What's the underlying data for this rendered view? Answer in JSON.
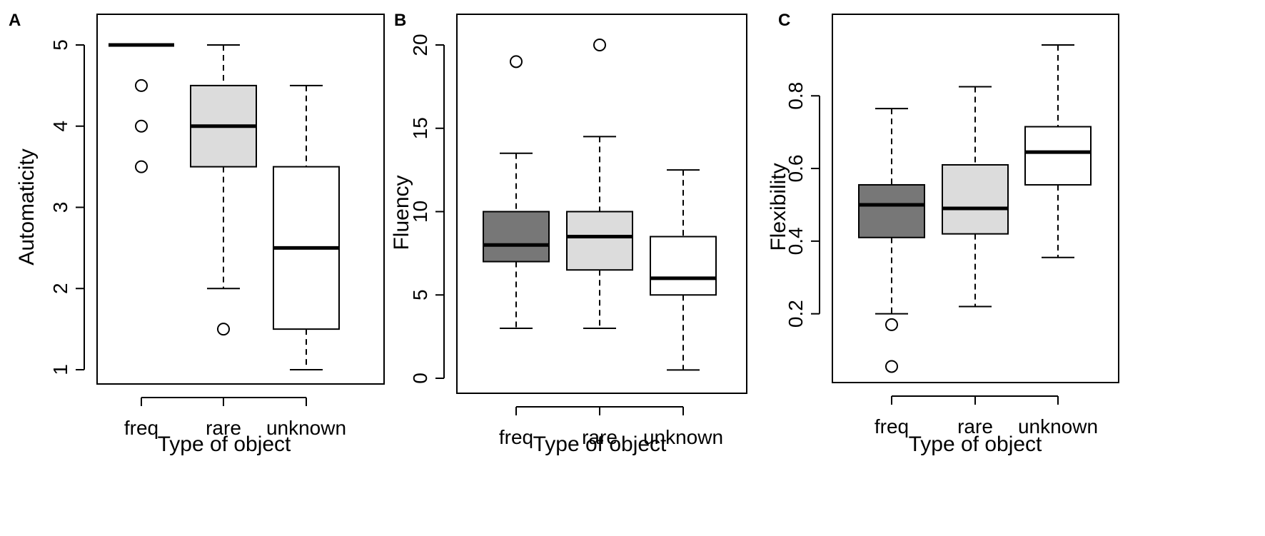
{
  "chart_data": [
    {
      "panel": "A",
      "type": "boxplot",
      "xlabel": "Type of object",
      "ylabel": "Automaticity",
      "ylim": [
        1,
        5
      ],
      "yticks": [
        1,
        2,
        3,
        4,
        5
      ],
      "categories": [
        "freq",
        "rare",
        "unknown"
      ],
      "fills": [
        "#777777",
        "#dcdcdc",
        "#ffffff"
      ],
      "boxes": [
        {
          "name": "freq",
          "whisker_low": 5,
          "q1": 5,
          "median": 5,
          "q3": 5,
          "whisker_high": 5,
          "outliers": [
            4.5,
            4.0,
            3.5
          ]
        },
        {
          "name": "rare",
          "whisker_low": 2.0,
          "q1": 3.5,
          "median": 4.0,
          "q3": 4.5,
          "whisker_high": 5.0,
          "outliers": [
            1.5
          ]
        },
        {
          "name": "unknown",
          "whisker_low": 1.0,
          "q1": 1.5,
          "median": 2.5,
          "q3": 3.5,
          "whisker_high": 4.5,
          "outliers": []
        }
      ]
    },
    {
      "panel": "B",
      "type": "boxplot",
      "xlabel": "Type of object",
      "ylabel": "Fluency",
      "ylim": [
        0,
        20
      ],
      "yticks": [
        0,
        5,
        10,
        15,
        20
      ],
      "categories": [
        "freq",
        "rare",
        "unknown"
      ],
      "fills": [
        "#777777",
        "#dcdcdc",
        "#ffffff"
      ],
      "boxes": [
        {
          "name": "freq",
          "whisker_low": 3,
          "q1": 7,
          "median": 8,
          "q3": 10,
          "whisker_high": 13.5,
          "outliers": [
            19
          ]
        },
        {
          "name": "rare",
          "whisker_low": 3,
          "q1": 6.5,
          "median": 8.5,
          "q3": 10,
          "whisker_high": 14.5,
          "outliers": [
            20
          ]
        },
        {
          "name": "unknown",
          "whisker_low": 0.5,
          "q1": 5,
          "median": 6,
          "q3": 8.5,
          "whisker_high": 12.5,
          "outliers": []
        }
      ]
    },
    {
      "panel": "C",
      "type": "boxplot",
      "xlabel": "Type of object",
      "ylabel": "Flexibility",
      "ylim": [
        0.05,
        0.94
      ],
      "yticks": [
        0.2,
        0.4,
        0.6,
        0.8
      ],
      "categories": [
        "freq",
        "rare",
        "unknown"
      ],
      "fills": [
        "#777777",
        "#dcdcdc",
        "#ffffff"
      ],
      "boxes": [
        {
          "name": "freq",
          "whisker_low": 0.2,
          "q1": 0.41,
          "median": 0.5,
          "q3": 0.555,
          "whisker_high": 0.765,
          "outliers": [
            0.17,
            0.055
          ]
        },
        {
          "name": "rare",
          "whisker_low": 0.22,
          "q1": 0.42,
          "median": 0.49,
          "q3": 0.61,
          "whisker_high": 0.825,
          "outliers": []
        },
        {
          "name": "unknown",
          "whisker_low": 0.355,
          "q1": 0.555,
          "median": 0.645,
          "q3": 0.715,
          "whisker_high": 0.94,
          "outliers": []
        }
      ]
    }
  ]
}
